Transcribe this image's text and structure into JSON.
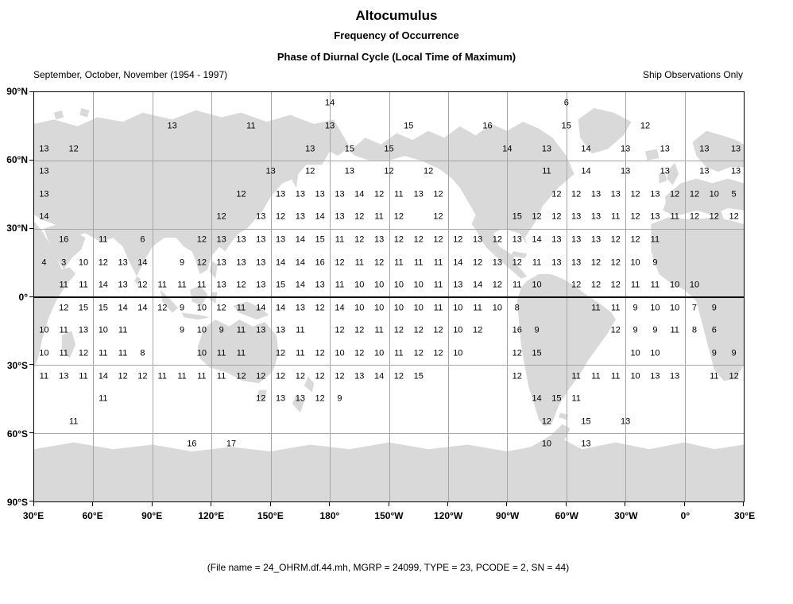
{
  "header": {
    "title": "Altocumulus",
    "subtitle1": "Frequency of Occurrence",
    "subtitle2": "Phase of Diurnal Cycle (Local Time of Maximum)",
    "period": "September, October, November (1954 - 1997)",
    "source": "Ship Observations Only"
  },
  "footer": {
    "text": "(File name = 24_OHRM.df.44.mh, MGRP = 24099, TYPE = 23, PCODE = 2, SN = 44)"
  },
  "colors": {
    "land": "#d9d9d9",
    "grid": "#a6a6a6",
    "equator": "#000000",
    "border": "#000000",
    "text": "#000000",
    "background": "#ffffff"
  },
  "chart_data": {
    "type": "heatmap",
    "title": "Altocumulus - Phase of Diurnal Cycle (Local Time of Maximum)",
    "units": "local time (hour) of diurnal maximum, per grid cell",
    "projection": "equirectangular world map, left edge at 30°E, spanning 360° eastward",
    "grid": "gridlines every 30°; values plotted at cell centers; x below is degrees east of 30°E (0-360); lat is cell-center latitude",
    "x_axis": {
      "deg_step": 30,
      "labels": [
        "30°E",
        "60°E",
        "90°E",
        "120°E",
        "150°E",
        "180°",
        "150°W",
        "120°W",
        "90°W",
        "60°W",
        "30°W",
        "0°",
        "30°E"
      ]
    },
    "y_axis": {
      "deg_step": 30,
      "labels": [
        "90°N",
        "60°N",
        "30°N",
        "0°",
        "30°S",
        "60°S",
        "90°S"
      ]
    },
    "rows": [
      {
        "lat": 85,
        "cells": [
          [
            150,
            14
          ],
          [
            270,
            6
          ]
        ]
      },
      {
        "lat": 75,
        "cells": [
          [
            70,
            13
          ],
          [
            110,
            11
          ],
          [
            150,
            13
          ],
          [
            190,
            15
          ],
          [
            230,
            16
          ],
          [
            270,
            15
          ],
          [
            310,
            12
          ]
        ]
      },
      {
        "lat": 65,
        "cells": [
          [
            5,
            13
          ],
          [
            20,
            12
          ],
          [
            140,
            13
          ],
          [
            160,
            15
          ],
          [
            180,
            15
          ],
          [
            240,
            14
          ],
          [
            260,
            13
          ],
          [
            280,
            14
          ],
          [
            300,
            13
          ],
          [
            320,
            13
          ],
          [
            340,
            13
          ],
          [
            356,
            13
          ]
        ]
      },
      {
        "lat": 55,
        "cells": [
          [
            5,
            13
          ],
          [
            120,
            13
          ],
          [
            140,
            12
          ],
          [
            160,
            13
          ],
          [
            180,
            12
          ],
          [
            200,
            12
          ],
          [
            260,
            11
          ],
          [
            280,
            14
          ],
          [
            300,
            13
          ],
          [
            320,
            13
          ],
          [
            340,
            13
          ],
          [
            356,
            13
          ]
        ]
      },
      {
        "lat": 45,
        "cells": [
          [
            5,
            13
          ],
          [
            105,
            12
          ],
          [
            125,
            13
          ],
          [
            135,
            13
          ],
          [
            145,
            13
          ],
          [
            155,
            13
          ],
          [
            165,
            14
          ],
          [
            175,
            12
          ],
          [
            185,
            11
          ],
          [
            195,
            13
          ],
          [
            205,
            12
          ],
          [
            265,
            12
          ],
          [
            275,
            12
          ],
          [
            285,
            13
          ],
          [
            295,
            13
          ],
          [
            305,
            12
          ],
          [
            315,
            13
          ],
          [
            325,
            12
          ],
          [
            335,
            12
          ],
          [
            345,
            10
          ],
          [
            355,
            5
          ]
        ]
      },
      {
        "lat": 35,
        "cells": [
          [
            5,
            14
          ],
          [
            95,
            12
          ],
          [
            115,
            13
          ],
          [
            125,
            12
          ],
          [
            135,
            13
          ],
          [
            145,
            14
          ],
          [
            155,
            13
          ],
          [
            165,
            12
          ],
          [
            175,
            11
          ],
          [
            185,
            12
          ],
          [
            205,
            12
          ],
          [
            245,
            15
          ],
          [
            255,
            12
          ],
          [
            265,
            12
          ],
          [
            275,
            13
          ],
          [
            285,
            13
          ],
          [
            295,
            11
          ],
          [
            305,
            12
          ],
          [
            315,
            13
          ],
          [
            325,
            11
          ],
          [
            335,
            12
          ],
          [
            345,
            12
          ],
          [
            355,
            12
          ]
        ]
      },
      {
        "lat": 25,
        "cells": [
          [
            15,
            16
          ],
          [
            35,
            11
          ],
          [
            55,
            6
          ],
          [
            85,
            12
          ],
          [
            95,
            13
          ],
          [
            105,
            13
          ],
          [
            115,
            13
          ],
          [
            125,
            13
          ],
          [
            135,
            14
          ],
          [
            145,
            15
          ],
          [
            155,
            11
          ],
          [
            165,
            12
          ],
          [
            175,
            13
          ],
          [
            185,
            12
          ],
          [
            195,
            12
          ],
          [
            205,
            12
          ],
          [
            215,
            12
          ],
          [
            225,
            13
          ],
          [
            235,
            12
          ],
          [
            245,
            13
          ],
          [
            255,
            14
          ],
          [
            265,
            13
          ],
          [
            275,
            13
          ],
          [
            285,
            13
          ],
          [
            295,
            12
          ],
          [
            305,
            12
          ],
          [
            315,
            11
          ]
        ]
      },
      {
        "lat": 15,
        "cells": [
          [
            5,
            4
          ],
          [
            15,
            3
          ],
          [
            25,
            10
          ],
          [
            35,
            12
          ],
          [
            45,
            13
          ],
          [
            55,
            14
          ],
          [
            75,
            9
          ],
          [
            85,
            12
          ],
          [
            95,
            13
          ],
          [
            105,
            13
          ],
          [
            115,
            13
          ],
          [
            125,
            14
          ],
          [
            135,
            14
          ],
          [
            145,
            16
          ],
          [
            155,
            12
          ],
          [
            165,
            11
          ],
          [
            175,
            12
          ],
          [
            185,
            11
          ],
          [
            195,
            11
          ],
          [
            205,
            11
          ],
          [
            215,
            14
          ],
          [
            225,
            12
          ],
          [
            235,
            13
          ],
          [
            245,
            12
          ],
          [
            255,
            11
          ],
          [
            265,
            13
          ],
          [
            275,
            13
          ],
          [
            285,
            12
          ],
          [
            295,
            12
          ],
          [
            305,
            10
          ],
          [
            315,
            9
          ]
        ]
      },
      {
        "lat": 5,
        "cells": [
          [
            15,
            11
          ],
          [
            25,
            11
          ],
          [
            35,
            14
          ],
          [
            45,
            13
          ],
          [
            55,
            12
          ],
          [
            65,
            11
          ],
          [
            75,
            11
          ],
          [
            85,
            11
          ],
          [
            95,
            13
          ],
          [
            105,
            12
          ],
          [
            115,
            13
          ],
          [
            125,
            15
          ],
          [
            135,
            14
          ],
          [
            145,
            13
          ],
          [
            155,
            11
          ],
          [
            165,
            10
          ],
          [
            175,
            10
          ],
          [
            185,
            10
          ],
          [
            195,
            10
          ],
          [
            205,
            11
          ],
          [
            215,
            13
          ],
          [
            225,
            14
          ],
          [
            235,
            12
          ],
          [
            245,
            11
          ],
          [
            255,
            10
          ],
          [
            275,
            12
          ],
          [
            285,
            12
          ],
          [
            295,
            12
          ],
          [
            305,
            11
          ],
          [
            315,
            11
          ],
          [
            325,
            10
          ],
          [
            335,
            10
          ]
        ]
      },
      {
        "lat": -5,
        "cells": [
          [
            15,
            12
          ],
          [
            25,
            15
          ],
          [
            35,
            15
          ],
          [
            45,
            14
          ],
          [
            55,
            14
          ],
          [
            65,
            12
          ],
          [
            75,
            9
          ],
          [
            85,
            10
          ],
          [
            95,
            12
          ],
          [
            105,
            11
          ],
          [
            115,
            14
          ],
          [
            125,
            14
          ],
          [
            135,
            13
          ],
          [
            145,
            12
          ],
          [
            155,
            14
          ],
          [
            165,
            10
          ],
          [
            175,
            10
          ],
          [
            185,
            10
          ],
          [
            195,
            10
          ],
          [
            205,
            11
          ],
          [
            215,
            10
          ],
          [
            225,
            11
          ],
          [
            235,
            10
          ],
          [
            245,
            8
          ],
          [
            285,
            11
          ],
          [
            295,
            11
          ],
          [
            305,
            9
          ],
          [
            315,
            10
          ],
          [
            325,
            10
          ],
          [
            335,
            7
          ],
          [
            345,
            9
          ]
        ]
      },
      {
        "lat": -15,
        "cells": [
          [
            5,
            10
          ],
          [
            15,
            11
          ],
          [
            25,
            13
          ],
          [
            35,
            10
          ],
          [
            45,
            11
          ],
          [
            75,
            9
          ],
          [
            85,
            10
          ],
          [
            95,
            9
          ],
          [
            105,
            11
          ],
          [
            115,
            13
          ],
          [
            125,
            13
          ],
          [
            135,
            11
          ],
          [
            155,
            12
          ],
          [
            165,
            12
          ],
          [
            175,
            11
          ],
          [
            185,
            12
          ],
          [
            195,
            12
          ],
          [
            205,
            12
          ],
          [
            215,
            10
          ],
          [
            225,
            12
          ],
          [
            245,
            16
          ],
          [
            255,
            9
          ],
          [
            295,
            12
          ],
          [
            305,
            9
          ],
          [
            315,
            9
          ],
          [
            325,
            11
          ],
          [
            335,
            8
          ],
          [
            345,
            6
          ]
        ]
      },
      {
        "lat": -25,
        "cells": [
          [
            5,
            10
          ],
          [
            15,
            11
          ],
          [
            25,
            12
          ],
          [
            35,
            11
          ],
          [
            45,
            11
          ],
          [
            55,
            8
          ],
          [
            85,
            10
          ],
          [
            95,
            11
          ],
          [
            105,
            11
          ],
          [
            125,
            12
          ],
          [
            135,
            11
          ],
          [
            145,
            12
          ],
          [
            155,
            10
          ],
          [
            165,
            12
          ],
          [
            175,
            10
          ],
          [
            185,
            11
          ],
          [
            195,
            12
          ],
          [
            205,
            12
          ],
          [
            215,
            10
          ],
          [
            245,
            12
          ],
          [
            255,
            15
          ],
          [
            305,
            10
          ],
          [
            315,
            10
          ],
          [
            345,
            9
          ],
          [
            355,
            9
          ]
        ]
      },
      {
        "lat": -35,
        "cells": [
          [
            5,
            11
          ],
          [
            15,
            13
          ],
          [
            25,
            11
          ],
          [
            35,
            14
          ],
          [
            45,
            12
          ],
          [
            55,
            12
          ],
          [
            65,
            11
          ],
          [
            75,
            11
          ],
          [
            85,
            11
          ],
          [
            95,
            11
          ],
          [
            105,
            12
          ],
          [
            115,
            12
          ],
          [
            125,
            12
          ],
          [
            135,
            12
          ],
          [
            145,
            12
          ],
          [
            155,
            12
          ],
          [
            165,
            13
          ],
          [
            175,
            14
          ],
          [
            185,
            12
          ],
          [
            195,
            15
          ],
          [
            245,
            12
          ],
          [
            275,
            11
          ],
          [
            285,
            11
          ],
          [
            295,
            11
          ],
          [
            305,
            10
          ],
          [
            315,
            13
          ],
          [
            325,
            13
          ],
          [
            345,
            11
          ],
          [
            355,
            12
          ]
        ]
      },
      {
        "lat": -45,
        "cells": [
          [
            35,
            11
          ],
          [
            115,
            12
          ],
          [
            125,
            13
          ],
          [
            135,
            13
          ],
          [
            145,
            12
          ],
          [
            155,
            9
          ],
          [
            255,
            14
          ],
          [
            265,
            15
          ],
          [
            275,
            11
          ]
        ]
      },
      {
        "lat": -55,
        "cells": [
          [
            20,
            11
          ],
          [
            260,
            12
          ],
          [
            280,
            15
          ],
          [
            300,
            13
          ]
        ]
      },
      {
        "lat": -65,
        "cells": [
          [
            80,
            16
          ],
          [
            100,
            17
          ],
          [
            260,
            10
          ],
          [
            280,
            13
          ]
        ]
      }
    ]
  }
}
